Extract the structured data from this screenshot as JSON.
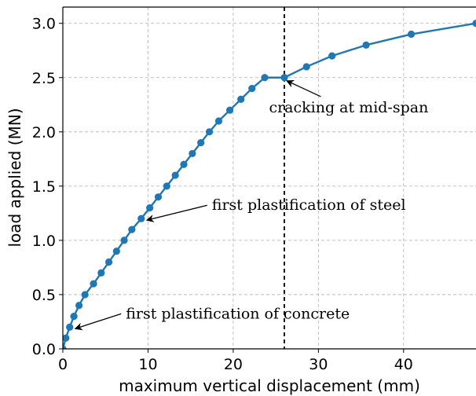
{
  "chart_data": {
    "type": "line",
    "title": "",
    "xlabel": "maximum vertical displacement (mm)",
    "ylabel": "load applied (MN)",
    "xlim": [
      0,
      48.5
    ],
    "ylim": [
      0,
      3.15
    ],
    "xticks": [
      0,
      10,
      20,
      30,
      40
    ],
    "yticks": [
      0.0,
      0.5,
      1.0,
      1.5,
      2.0,
      2.5,
      3.0
    ],
    "xtick_labels": [
      "0",
      "10",
      "20",
      "30",
      "40"
    ],
    "ytick_labels": [
      "0.0",
      "0.5",
      "1.0",
      "1.5",
      "2.0",
      "2.5",
      "3.0"
    ],
    "grid": true,
    "line_color": "#1f77b4",
    "series": [
      {
        "x": [
          0.0,
          0.35,
          0.8,
          1.3,
          1.9,
          2.6,
          3.6,
          4.5,
          5.4,
          6.3,
          7.2,
          8.1,
          9.2,
          10.2,
          11.2,
          12.2,
          13.2,
          14.2,
          15.2,
          16.2,
          17.2,
          18.3,
          19.6,
          20.9,
          22.2,
          23.7,
          26.0,
          28.6,
          31.6,
          35.6,
          40.9,
          48.5
        ],
        "y": [
          0.0,
          0.1,
          0.2,
          0.3,
          0.4,
          0.5,
          0.6,
          0.7,
          0.8,
          0.9,
          1.0,
          1.1,
          1.2,
          1.3,
          1.4,
          1.5,
          1.6,
          1.7,
          1.8,
          1.9,
          2.0,
          2.1,
          2.2,
          2.3,
          2.4,
          2.5,
          2.5,
          2.6,
          2.7,
          2.8,
          2.9,
          3.0
        ]
      }
    ],
    "vline": {
      "x": 26.0,
      "style": "dashed",
      "color": "#000000"
    },
    "annotations": [
      {
        "text": "cracking at mid-span",
        "x": 26.0,
        "y": 2.5,
        "text_x": 24.2,
        "text_y": 2.18
      },
      {
        "text": "first plastification of steel",
        "x": 9.2,
        "y": 1.2,
        "text_x": 17.5,
        "text_y": 1.28
      },
      {
        "text": "first plastification of concrete",
        "x": 0.8,
        "y": 0.2,
        "text_x": 7.4,
        "text_y": 0.28
      }
    ]
  }
}
